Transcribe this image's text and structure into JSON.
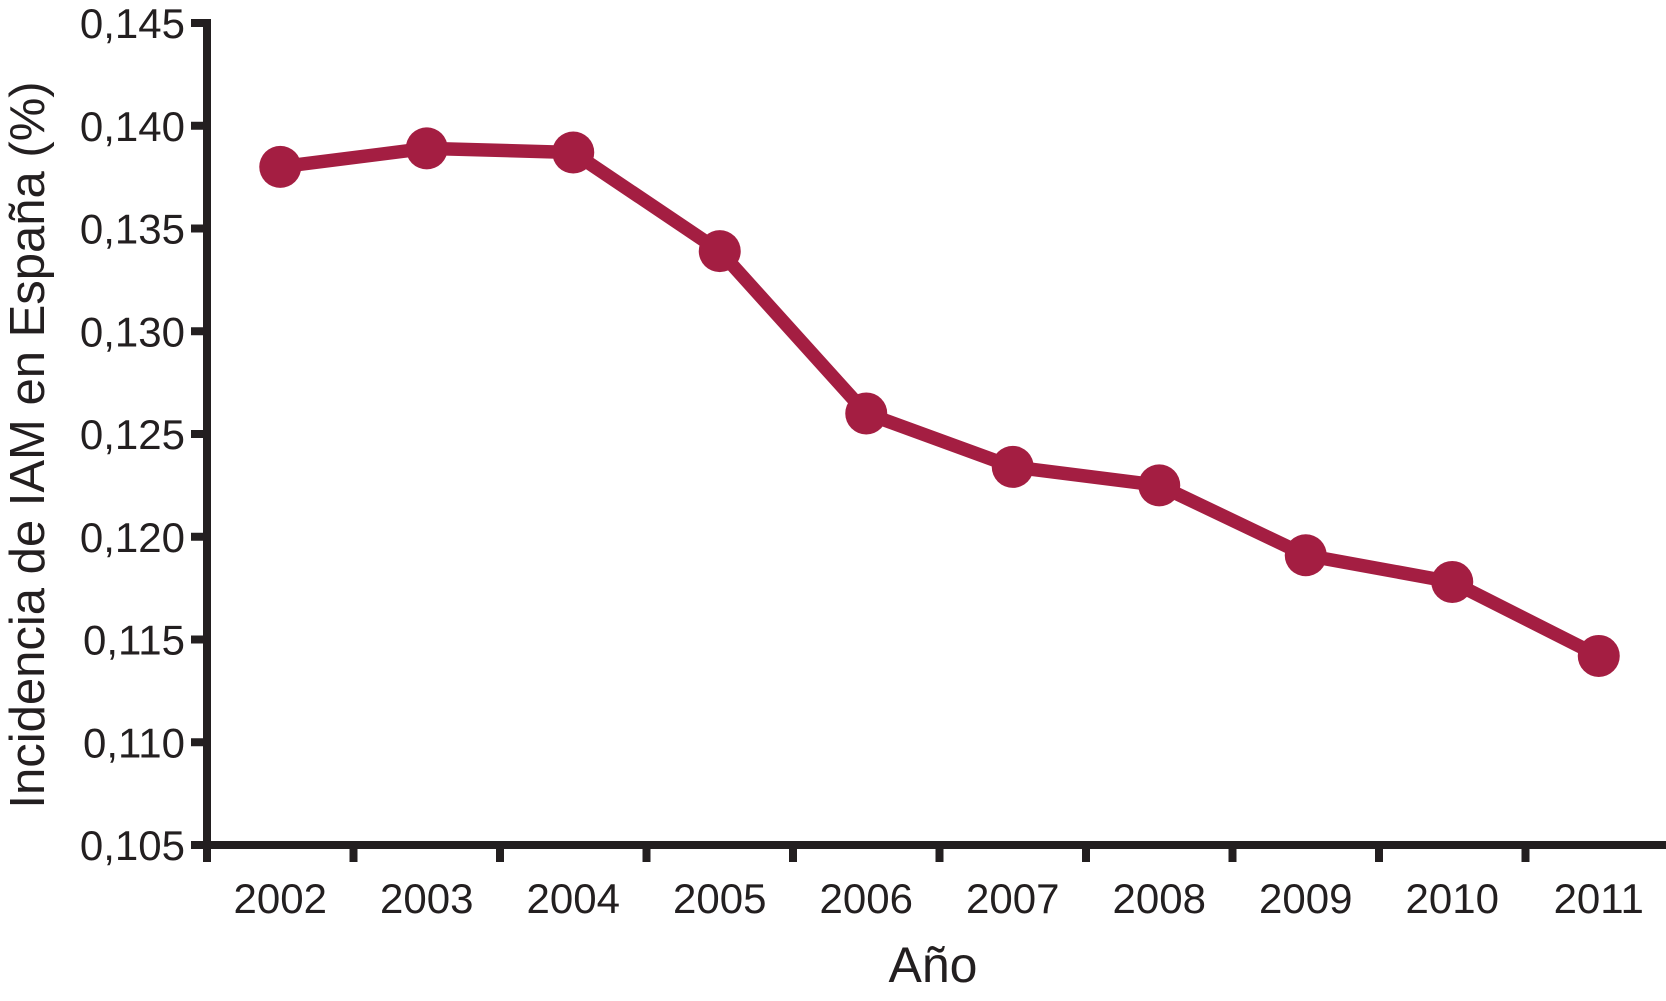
{
  "figure": {
    "background_color": "#FFFFFF",
    "text_color": "#231F20"
  },
  "chart_data": {
    "type": "line",
    "title": "",
    "xlabel": "Año",
    "ylabel": "Incidencia de IAM en España (%)",
    "categories": [
      "2002",
      "2003",
      "2004",
      "2005",
      "2006",
      "2007",
      "2008",
      "2009",
      "2010",
      "2011"
    ],
    "series": [
      {
        "name": "Incidencia de IAM",
        "values": [
          0.138,
          0.1389,
          0.1387,
          0.1339,
          0.126,
          0.1234,
          0.1225,
          0.1191,
          0.1178,
          0.1142
        ]
      }
    ],
    "ylim": [
      0.105,
      0.145
    ],
    "y_ticks": [
      0.105,
      0.11,
      0.115,
      0.12,
      0.125,
      0.13,
      0.135,
      0.14,
      0.145
    ],
    "y_tick_labels": [
      "0,105",
      "0,110",
      "0,115",
      "0,120",
      "0,125",
      "0,130",
      "0,135",
      "0,140",
      "0,145"
    ],
    "decimal_separator": ",",
    "grid": false,
    "legend_position": "none",
    "marker": "circle",
    "line_color": "#A41E42",
    "marker_color": "#A41E42",
    "axis_color": "#231F20",
    "x_ticks_between_categories": true
  }
}
